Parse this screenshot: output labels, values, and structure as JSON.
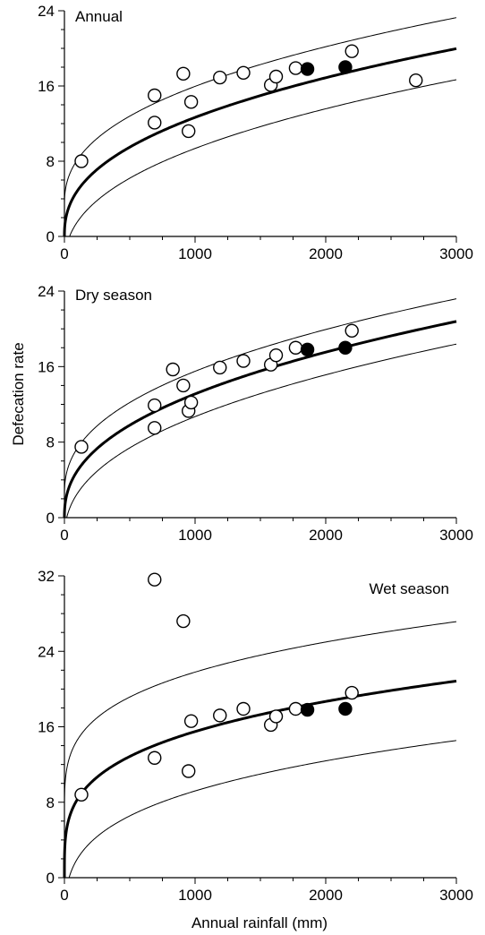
{
  "figure": {
    "ylabel": "Defecation rate",
    "xlabel": "Annual rainfall (mm)"
  },
  "chart_data": [
    {
      "type": "scatter",
      "title": "Annual",
      "xlim": [
        0,
        3000
      ],
      "ylim": [
        0,
        24
      ],
      "xticks": [
        0,
        1000,
        2000,
        3000
      ],
      "yticks": [
        0,
        8,
        16,
        24
      ],
      "grid": false,
      "series": [
        {
          "marker": "open-circle",
          "x": [
            130,
            690,
            690,
            910,
            950,
            970,
            1190,
            1370,
            1580,
            1620,
            1770,
            2200,
            2690
          ],
          "y": [
            8.0,
            12.1,
            15.0,
            17.3,
            11.2,
            14.3,
            16.9,
            17.4,
            16.1,
            17.0,
            17.9,
            19.7,
            16.6
          ]
        },
        {
          "marker": "filled-circle",
          "x": [
            1860,
            2150
          ],
          "y": [
            17.8,
            18.0
          ]
        }
      ],
      "fit": {
        "a": 0.72,
        "b": 0.415,
        "upper_offset": 3.3,
        "lower_offset": -3.3
      }
    },
    {
      "type": "scatter",
      "title": "Dry season",
      "xlim": [
        0,
        3000
      ],
      "ylim": [
        0,
        24
      ],
      "xticks": [
        0,
        1000,
        2000,
        3000
      ],
      "yticks": [
        0,
        8,
        16,
        24
      ],
      "grid": false,
      "series": [
        {
          "marker": "open-circle",
          "x": [
            130,
            690,
            690,
            830,
            910,
            950,
            970,
            1190,
            1370,
            1580,
            1620,
            1770,
            2200
          ],
          "y": [
            7.5,
            9.5,
            11.9,
            15.7,
            14.0,
            11.3,
            12.2,
            15.9,
            16.6,
            16.2,
            17.2,
            18.0,
            19.8
          ]
        },
        {
          "marker": "filled-circle",
          "x": [
            1860,
            2150
          ],
          "y": [
            17.8,
            18.0
          ]
        }
      ],
      "fit": {
        "a": 0.72,
        "b": 0.42,
        "upper_offset": 2.4,
        "lower_offset": -2.4
      }
    },
    {
      "type": "scatter",
      "title": "Wet season",
      "xlim": [
        0,
        3000
      ],
      "ylim": [
        0,
        32
      ],
      "xticks": [
        0,
        1000,
        2000,
        3000
      ],
      "yticks": [
        0,
        8,
        16,
        24,
        32
      ],
      "grid": false,
      "series": [
        {
          "marker": "open-circle",
          "x": [
            130,
            690,
            690,
            910,
            950,
            970,
            1190,
            1370,
            1580,
            1620,
            1770,
            2200
          ],
          "y": [
            8.8,
            31.6,
            12.7,
            27.2,
            11.3,
            16.6,
            17.2,
            17.9,
            16.2,
            17.1,
            17.9,
            19.6
          ]
        },
        {
          "marker": "filled-circle",
          "x": [
            1860,
            2150
          ],
          "y": [
            17.8,
            17.9
          ]
        }
      ],
      "fit": {
        "a": 2.4,
        "b": 0.27,
        "upper_offset": 6.3,
        "lower_offset": -6.3
      }
    }
  ]
}
